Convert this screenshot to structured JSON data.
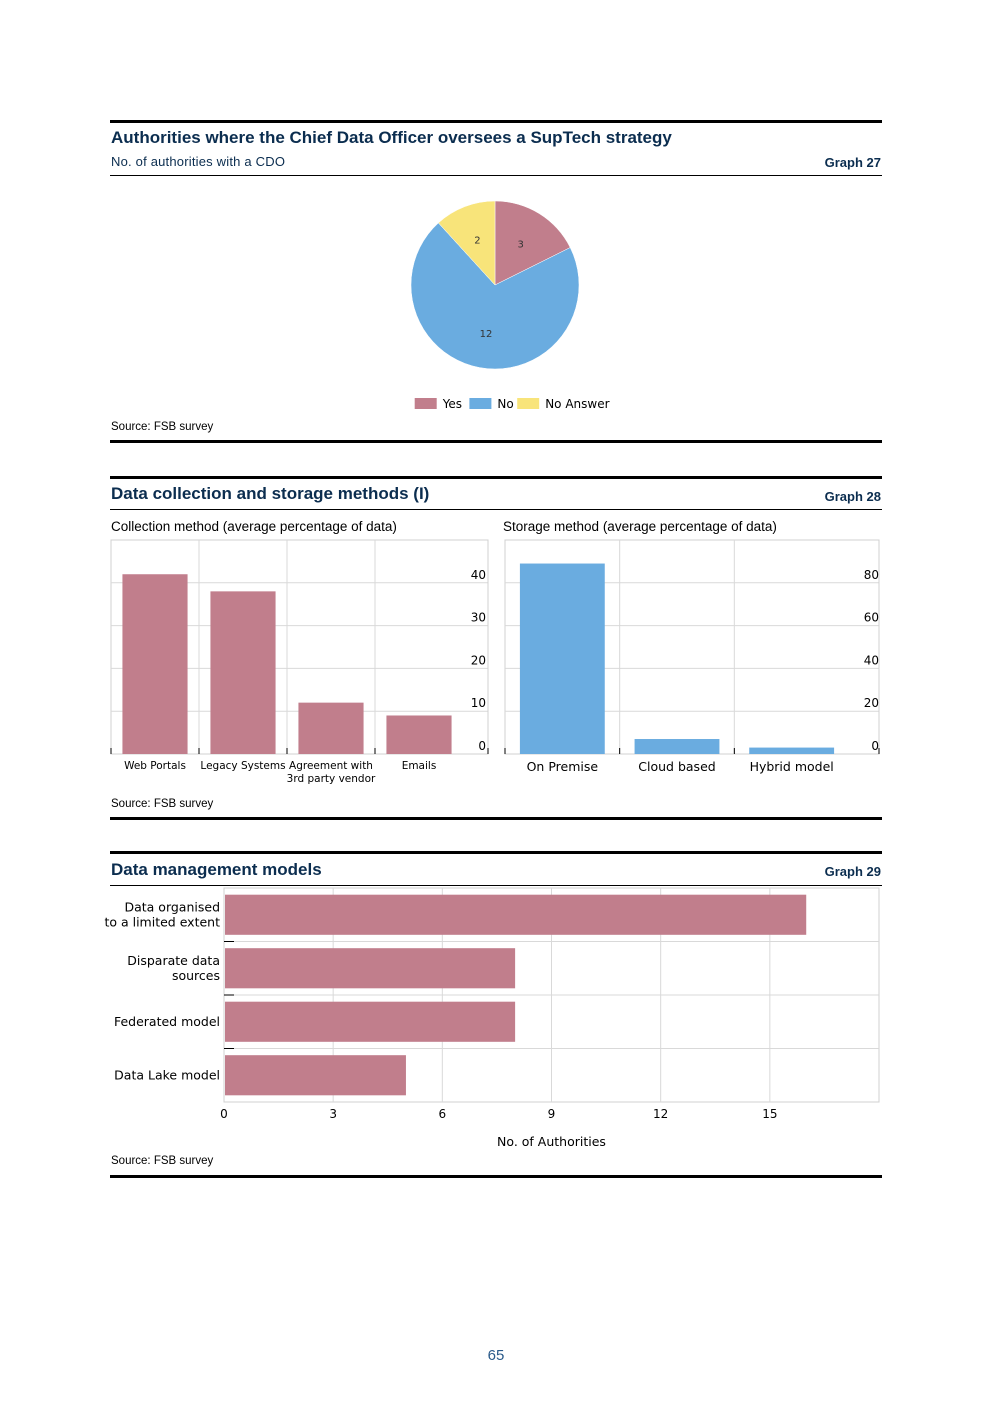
{
  "graph27": {
    "title": "Authorities where the Chief Data Officer oversees a SupTech strategy",
    "subtitle": "No. of authorities with a CDO",
    "label": "Graph 27",
    "source": "Source: FSB survey"
  },
  "graph28": {
    "title": "Data collection and storage methods (I)",
    "label": "Graph 28",
    "source": "Source: FSB survey"
  },
  "graph29": {
    "title": "Data management models",
    "label": "Graph 29",
    "source": "Source: FSB survey"
  },
  "page_number": "65",
  "colors": {
    "pink": "#c17e8c",
    "blue": "#6aace0",
    "yellow": "#f8e47a",
    "navy": "#0b2d4f"
  },
  "chart_data": [
    {
      "id": "cdo-pie",
      "type": "pie",
      "labels": [
        "Yes",
        "No",
        "No Answer"
      ],
      "values": [
        3,
        12,
        2
      ],
      "colors": [
        "#c17e8c",
        "#6aace0",
        "#f8e47a"
      ],
      "legend": "bottom"
    },
    {
      "id": "collection-bar",
      "type": "bar",
      "title": "Collection method (average percentage of data)",
      "categories": [
        "Web Portals",
        "Legacy Systems",
        "Agreement with\n3rd party vendor",
        "Emails"
      ],
      "values": [
        42,
        38,
        12,
        9
      ],
      "ylim": [
        0,
        50
      ],
      "yticks": [
        0,
        10,
        20,
        30,
        40
      ],
      "color": "#c17e8c"
    },
    {
      "id": "storage-bar",
      "type": "bar",
      "title": "Storage method (average percentage of data)",
      "categories": [
        "On Premise",
        "Cloud based",
        "Hybrid model"
      ],
      "values": [
        89,
        7,
        3
      ],
      "ylim": [
        0,
        100
      ],
      "yticks": [
        0,
        20,
        40,
        60,
        80
      ],
      "color": "#6aace0"
    },
    {
      "id": "models-hbar",
      "type": "bar",
      "orientation": "horizontal",
      "categories": [
        "Data organised\nto a limited extent",
        "Disparate data\nsources",
        "Federated model",
        "Data Lake model"
      ],
      "values": [
        16,
        8,
        8,
        5
      ],
      "xlim": [
        0,
        18
      ],
      "xticks": [
        0,
        3,
        6,
        9,
        12,
        15
      ],
      "xlabel": "No. of Authorities",
      "color": "#c17e8c"
    }
  ]
}
